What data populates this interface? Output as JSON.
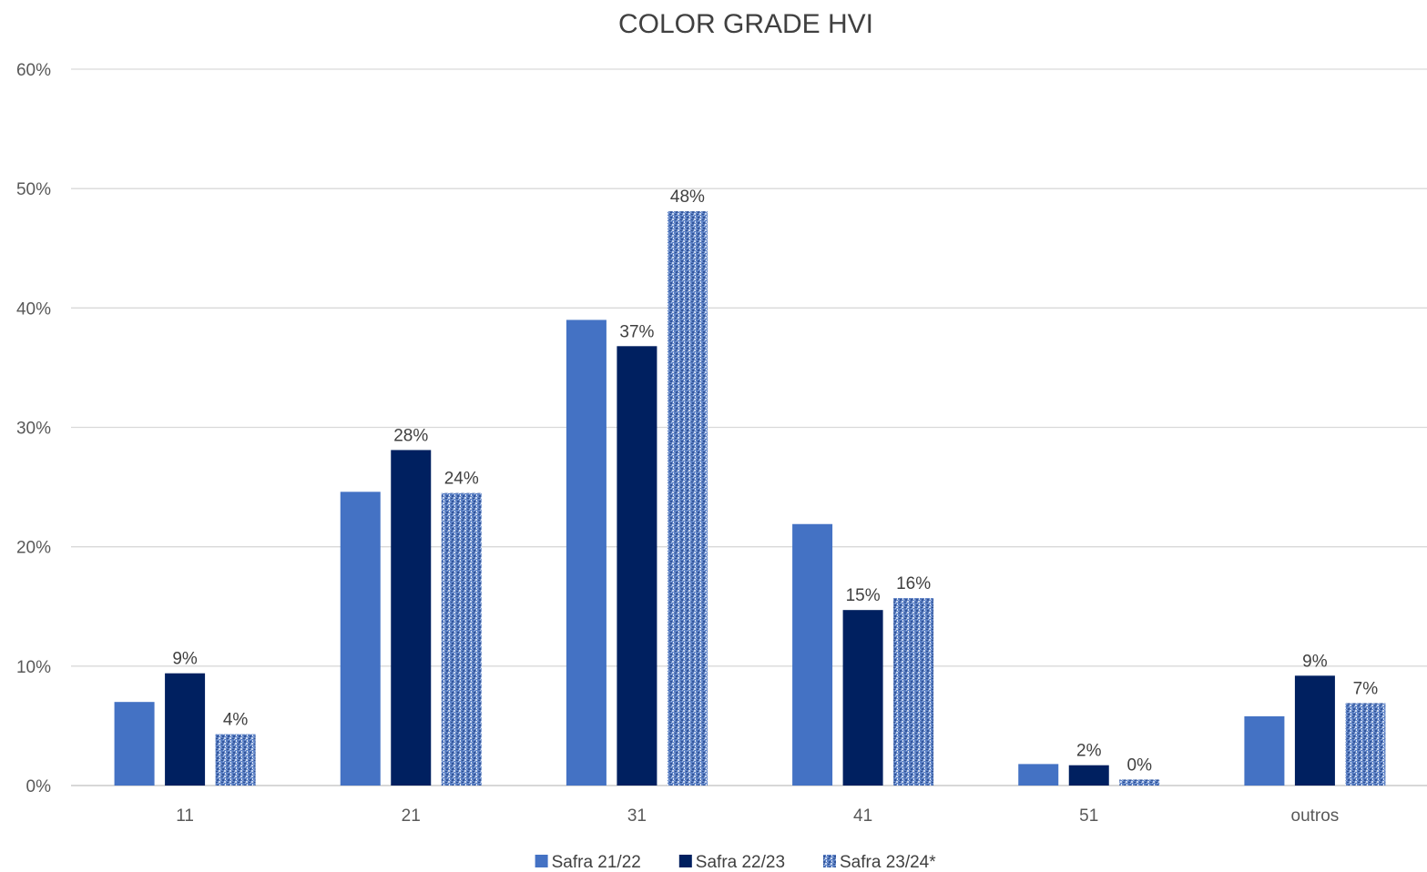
{
  "chart_data": {
    "type": "bar",
    "title": "COLOR GRADE HVI",
    "xlabel": "",
    "ylabel": "",
    "ylim": [
      0,
      60
    ],
    "yticks": [
      "0%",
      "10%",
      "20%",
      "30%",
      "40%",
      "50%",
      "60%"
    ],
    "categories": [
      "11",
      "21",
      "31",
      "41",
      "51",
      "outros"
    ],
    "grid": true,
    "legend_position": "bottom",
    "series": [
      {
        "name": "Safra 21/22",
        "color": "#4472C4",
        "pattern": "solid",
        "values": [
          7,
          24.6,
          39,
          21.9,
          1.8,
          5.8
        ],
        "labels": [
          "",
          "",
          "",
          "",
          "",
          ""
        ]
      },
      {
        "name": "Safra 22/23",
        "color": "#002060",
        "pattern": "solid",
        "values": [
          9.4,
          28.1,
          36.8,
          14.7,
          1.7,
          9.2
        ],
        "labels": [
          "9%",
          "28%",
          "37%",
          "15%",
          "2%",
          "9%"
        ]
      },
      {
        "name": "Safra 23/24*",
        "color": "#4F74B8",
        "pattern": "textured",
        "values": [
          4.3,
          24.5,
          48.1,
          15.7,
          0.5,
          6.9
        ],
        "labels": [
          "4%",
          "24%",
          "48%",
          "16%",
          "0%",
          "7%"
        ]
      }
    ]
  }
}
